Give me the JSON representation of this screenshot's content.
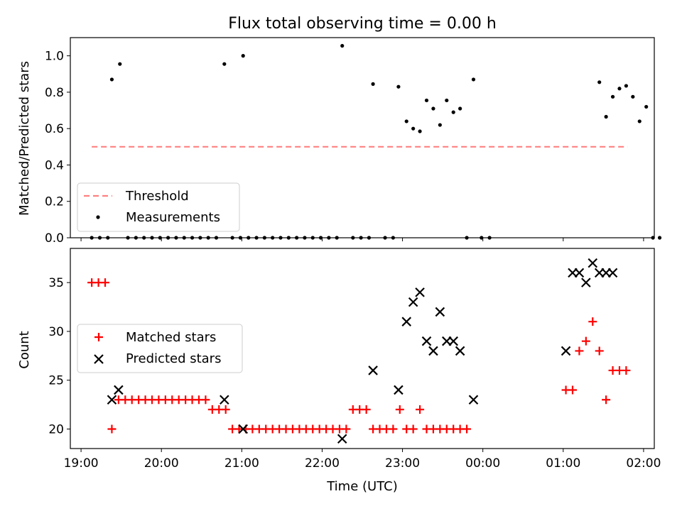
{
  "chart_data": [
    {
      "type": "scatter",
      "title": "Flux total observing time = 0.00 h",
      "xlabel": "",
      "ylabel": "Matched/Predicted stars",
      "xlim": [
        "18:52",
        "02:08"
      ],
      "ylim": [
        0,
        1.1
      ],
      "yticks": [
        "0.0",
        "0.2",
        "0.4",
        "0.6",
        "0.8",
        "1.0"
      ],
      "legend_position": "lower-left",
      "threshold": {
        "name": "Threshold",
        "value": 0.5,
        "x_start": "19:08",
        "x_end": "01:48",
        "color": "#ff8080",
        "style": "dashed"
      },
      "series": [
        {
          "name": "Measurements",
          "color": "#000000",
          "marker": "dot",
          "points": [
            [
              "19:08",
              0
            ],
            [
              "19:14",
              0
            ],
            [
              "19:20",
              0
            ],
            [
              "19:23",
              0.87
            ],
            [
              "19:29",
              0.955
            ],
            [
              "19:35",
              0
            ],
            [
              "19:41",
              0
            ],
            [
              "19:47",
              0
            ],
            [
              "19:53",
              0
            ],
            [
              "19:59",
              0
            ],
            [
              "20:05",
              0
            ],
            [
              "20:11",
              0
            ],
            [
              "20:17",
              0
            ],
            [
              "20:23",
              0
            ],
            [
              "20:29",
              0
            ],
            [
              "20:35",
              0
            ],
            [
              "20:41",
              0
            ],
            [
              "20:47",
              0.955
            ],
            [
              "20:53",
              0
            ],
            [
              "20:59",
              0
            ],
            [
              "21:01",
              1.0
            ],
            [
              "21:05",
              0
            ],
            [
              "21:11",
              0
            ],
            [
              "21:17",
              0
            ],
            [
              "21:23",
              0
            ],
            [
              "21:29",
              0
            ],
            [
              "21:35",
              0
            ],
            [
              "21:41",
              0
            ],
            [
              "21:47",
              0
            ],
            [
              "21:53",
              0
            ],
            [
              "21:59",
              0
            ],
            [
              "22:05",
              0
            ],
            [
              "22:11",
              0
            ],
            [
              "22:15",
              1.055
            ],
            [
              "22:23",
              0
            ],
            [
              "22:29",
              0
            ],
            [
              "22:35",
              0
            ],
            [
              "22:38",
              0.845
            ],
            [
              "22:47",
              0
            ],
            [
              "22:53",
              0
            ],
            [
              "22:57",
              0.83
            ],
            [
              "23:03",
              0.64
            ],
            [
              "23:08",
              0.6
            ],
            [
              "23:13",
              0.585
            ],
            [
              "23:18",
              0.755
            ],
            [
              "23:23",
              0.71
            ],
            [
              "23:28",
              0.62
            ],
            [
              "23:33",
              0.755
            ],
            [
              "23:38",
              0.69
            ],
            [
              "23:43",
              0.71
            ],
            [
              "23:48",
              0
            ],
            [
              "23:53",
              0.87
            ],
            [
              "23:59",
              0
            ],
            [
              "00:05",
              0
            ],
            [
              "01:27",
              0.855
            ],
            [
              "01:32",
              0.665
            ],
            [
              "01:37",
              0.775
            ],
            [
              "01:42",
              0.82
            ],
            [
              "01:47",
              0.835
            ],
            [
              "01:52",
              0.775
            ],
            [
              "01:57",
              0.64
            ],
            [
              "02:02",
              0.72
            ],
            [
              "02:07",
              0
            ],
            [
              "02:12",
              0
            ]
          ]
        }
      ]
    },
    {
      "type": "scatter",
      "title": "",
      "xlabel": "Time (UTC)",
      "ylabel": "Count",
      "xlim": [
        "18:52",
        "02:08"
      ],
      "ylim": [
        18,
        38.5
      ],
      "yticks": [
        "20",
        "25",
        "30",
        "35"
      ],
      "xticks": [
        "19:00",
        "20:00",
        "21:00",
        "22:00",
        "23:00",
        "00:00",
        "01:00",
        "02:00"
      ],
      "legend_position": "center-left",
      "series": [
        {
          "name": "Matched stars",
          "color": "#ff0000",
          "marker": "plus",
          "points": [
            [
              "19:08",
              35
            ],
            [
              "19:13",
              35
            ],
            [
              "19:18",
              35
            ],
            [
              "19:23",
              20
            ],
            [
              "19:28",
              23
            ],
            [
              "19:33",
              23
            ],
            [
              "19:38",
              23
            ],
            [
              "19:43",
              23
            ],
            [
              "19:48",
              23
            ],
            [
              "19:53",
              23
            ],
            [
              "19:58",
              23
            ],
            [
              "20:03",
              23
            ],
            [
              "20:08",
              23
            ],
            [
              "20:13",
              23
            ],
            [
              "20:18",
              23
            ],
            [
              "20:23",
              23
            ],
            [
              "20:28",
              23
            ],
            [
              "20:33",
              23
            ],
            [
              "20:38",
              22
            ],
            [
              "20:43",
              22
            ],
            [
              "20:48",
              22
            ],
            [
              "20:53",
              20
            ],
            [
              "20:58",
              20
            ],
            [
              "21:03",
              20
            ],
            [
              "21:08",
              20
            ],
            [
              "21:13",
              20
            ],
            [
              "21:18",
              20
            ],
            [
              "21:23",
              20
            ],
            [
              "21:28",
              20
            ],
            [
              "21:33",
              20
            ],
            [
              "21:38",
              20
            ],
            [
              "21:43",
              20
            ],
            [
              "21:48",
              20
            ],
            [
              "21:53",
              20
            ],
            [
              "21:58",
              20
            ],
            [
              "22:03",
              20
            ],
            [
              "22:08",
              20
            ],
            [
              "22:13",
              20
            ],
            [
              "22:18",
              20
            ],
            [
              "22:23",
              22
            ],
            [
              "22:28",
              22
            ],
            [
              "22:33",
              22
            ],
            [
              "22:38",
              20
            ],
            [
              "22:43",
              20
            ],
            [
              "22:48",
              20
            ],
            [
              "22:53",
              20
            ],
            [
              "22:58",
              22
            ],
            [
              "23:03",
              20
            ],
            [
              "23:08",
              20
            ],
            [
              "23:13",
              22
            ],
            [
              "23:18",
              20
            ],
            [
              "23:23",
              20
            ],
            [
              "23:28",
              20
            ],
            [
              "23:33",
              20
            ],
            [
              "23:38",
              20
            ],
            [
              "23:43",
              20
            ],
            [
              "23:48",
              20
            ],
            [
              "01:02",
              24
            ],
            [
              "01:07",
              24
            ],
            [
              "01:12",
              28
            ],
            [
              "01:17",
              29
            ],
            [
              "01:22",
              31
            ],
            [
              "01:27",
              28
            ],
            [
              "01:32",
              23
            ],
            [
              "01:37",
              26
            ],
            [
              "01:42",
              26
            ],
            [
              "01:47",
              26
            ]
          ]
        },
        {
          "name": "Predicted stars",
          "color": "#000000",
          "marker": "x",
          "points": [
            [
              "19:23",
              23
            ],
            [
              "19:28",
              24
            ],
            [
              "20:47",
              23
            ],
            [
              "21:01",
              20
            ],
            [
              "22:15",
              19
            ],
            [
              "22:38",
              26
            ],
            [
              "22:57",
              24
            ],
            [
              "23:03",
              31
            ],
            [
              "23:08",
              33
            ],
            [
              "23:13",
              34
            ],
            [
              "23:18",
              29
            ],
            [
              "23:23",
              28
            ],
            [
              "23:28",
              32
            ],
            [
              "23:33",
              29
            ],
            [
              "23:38",
              29
            ],
            [
              "23:43",
              28
            ],
            [
              "23:53",
              23
            ],
            [
              "01:02",
              28
            ],
            [
              "01:07",
              36
            ],
            [
              "01:12",
              36
            ],
            [
              "01:17",
              35
            ],
            [
              "01:22",
              37
            ],
            [
              "01:27",
              36
            ],
            [
              "01:32",
              36
            ],
            [
              "01:37",
              36
            ]
          ]
        }
      ]
    }
  ]
}
